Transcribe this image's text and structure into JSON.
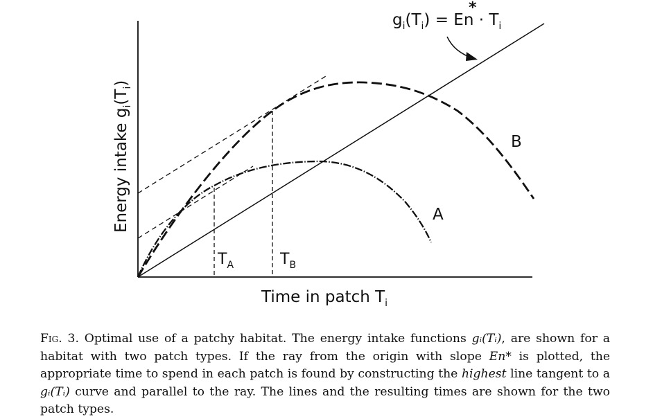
{
  "figure": {
    "equation_label": "gᵢ(Tᵢ) = Eñ · Tᵢ",
    "eq_g": "g",
    "eq_g_sub": "i",
    "eq_open": "(T",
    "eq_T_sub": "i",
    "eq_mid": ") = E",
    "eq_n": "n",
    "eq_star": "*",
    "eq_dot": " · T",
    "eq_end_sub": "i",
    "y_axis_label": "Energy  intake  gᵢ(Tᵢ)",
    "y_axis_main": "Energy  intake  g",
    "y_axis_sub1": "i",
    "y_axis_mid": "(T",
    "y_axis_sub2": "i",
    "y_axis_end": ")",
    "x_axis_label": "Time  in patch Tᵢ",
    "x_axis_main": "Time  in patch T",
    "x_axis_sub": "i",
    "curve_a_label": "A",
    "curve_b_label": "B",
    "ta_label": "T",
    "ta_sub": "A",
    "tb_label": "T",
    "tb_sub": "B"
  },
  "caption": {
    "fig_label": "Fig. 3.",
    "text_1": "  Optimal use of a patchy habitat. The energy intake functions ",
    "g_ti_1": "gᵢ(Tᵢ)",
    "text_2": ", are shown for a habitat with two patch types. If the ray from the origin with slope ",
    "en_star": "En*",
    "text_3": " is plotted, the appropriate time to spend in each patch is found by constructing the ",
    "highest": "highest",
    "text_4": " line tangent to a ",
    "g_ti_2": "gᵢ(Tᵢ)",
    "text_5": " curve and parallel to the ray. The lines and the resulting times are shown for the two patch types."
  }
}
